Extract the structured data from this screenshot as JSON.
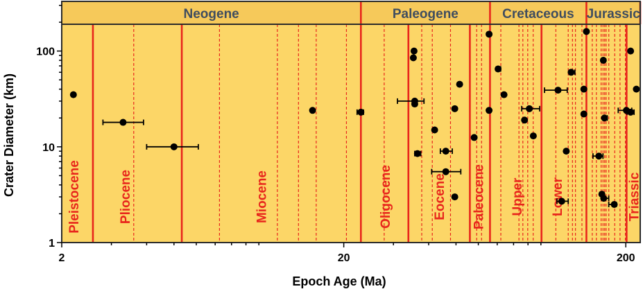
{
  "chart_data": {
    "type": "scatter",
    "xlabel": "Epoch Age (Ma)",
    "ylabel": "Crater Diameter (km)",
    "x_scale": "log",
    "y_scale": "log",
    "xlim": [
      2,
      225
    ],
    "ylim": [
      1,
      330
    ],
    "x_ticks": [
      {
        "value": 2,
        "label": "2"
      },
      {
        "value": 20,
        "label": "20"
      },
      {
        "value": 200,
        "label": "200"
      }
    ],
    "y_ticks": [
      {
        "value": 1,
        "label": "1"
      },
      {
        "value": 10,
        "label": "10"
      },
      {
        "value": 100,
        "label": "100"
      }
    ],
    "colors": {
      "plot_background": "#fcd667",
      "period_band": "#f6c95a",
      "boundary_line": "#e8261c",
      "period_text": "#3f4d5f",
      "epoch_text": "#e8261c",
      "marker": "#000000"
    },
    "periods": [
      {
        "name": "Neogene",
        "start": 2,
        "end": 23.0
      },
      {
        "name": "Paleogene",
        "start": 23.0,
        "end": 66.0
      },
      {
        "name": "Cretaceous",
        "start": 66.0,
        "end": 145.0
      },
      {
        "name": "Jurassic",
        "start": 145.0,
        "end": 225
      }
    ],
    "epochs": [
      {
        "name": "Pleistocene",
        "x": 2.2
      },
      {
        "name": "Pliocene",
        "x": 3.35
      },
      {
        "name": "Miocene",
        "x": 10.2
      },
      {
        "name": "Oligocene",
        "x": 28.0
      },
      {
        "name": "Eocene",
        "x": 43.5
      },
      {
        "name": "Paleocene",
        "x": 60.0
      },
      {
        "name": "Upper",
        "x": 82.0
      },
      {
        "name": "Lower",
        "x": 114.0
      },
      {
        "name": "Triassic",
        "x": 213.0
      }
    ],
    "major_boundaries": [
      2.58,
      5.33,
      23.0,
      33.9,
      56.0,
      66.0,
      100.5,
      145.0,
      201.3
    ],
    "minor_boundaries": [
      3.6,
      7.25,
      11.63,
      13.82,
      15.97,
      20.44,
      27.82,
      37.8,
      41.2,
      47.8,
      59.2,
      61.6,
      72.1,
      83.6,
      86.3,
      89.8,
      93.9,
      113.0,
      125.0,
      129.4,
      132.6,
      139.8,
      152.1,
      157.3,
      163.5,
      166.1,
      168.3,
      170.3,
      174.1,
      182.7,
      190.8,
      199.3
    ],
    "series": [
      {
        "points": [
          {
            "x": 2.2,
            "y": 35
          },
          {
            "x": 3.3,
            "y": 18,
            "xerr": [
              2.8,
              3.9
            ]
          },
          {
            "x": 5.0,
            "y": 10,
            "xerr": [
              4.0,
              6.1
            ]
          },
          {
            "x": 15.5,
            "y": 24
          },
          {
            "x": 23.0,
            "y": 23,
            "xerr": [
              22.3,
              23.5
            ]
          },
          {
            "x": 35.5,
            "y": 100
          },
          {
            "x": 35.3,
            "y": 85
          },
          {
            "x": 35.7,
            "y": 30,
            "xerr": [
              31.0,
              38.5
            ]
          },
          {
            "x": 35.7,
            "y": 28
          },
          {
            "x": 36.5,
            "y": 8.5,
            "xerr": [
              35.7,
              37.5
            ]
          },
          {
            "x": 42.0,
            "y": 15
          },
          {
            "x": 46.0,
            "y": 9,
            "xerr": [
              44.0,
              48.5
            ]
          },
          {
            "x": 46.0,
            "y": 5.5,
            "xerr": [
              41.0,
              52.0
            ]
          },
          {
            "x": 49.5,
            "y": 25
          },
          {
            "x": 49.5,
            "y": 3
          },
          {
            "x": 51.5,
            "y": 45
          },
          {
            "x": 58.0,
            "y": 12.5
          },
          {
            "x": 65.5,
            "y": 150
          },
          {
            "x": 65.5,
            "y": 24
          },
          {
            "x": 70.5,
            "y": 65,
            "xerr": [
              69.5,
              72.0
            ]
          },
          {
            "x": 74.0,
            "y": 35
          },
          {
            "x": 87.5,
            "y": 19
          },
          {
            "x": 91.0,
            "y": 25,
            "xerr": [
              85.5,
              99.0
            ]
          },
          {
            "x": 94.0,
            "y": 13
          },
          {
            "x": 115.0,
            "y": 39,
            "xerr": [
              103.0,
              124.0
            ]
          },
          {
            "x": 118.5,
            "y": 2.7,
            "xerr": [
              114.0,
              125.0
            ]
          },
          {
            "x": 123.0,
            "y": 9
          },
          {
            "x": 128.0,
            "y": 60,
            "xerr": [
              126.0,
              132.0
            ]
          },
          {
            "x": 142.0,
            "y": 40
          },
          {
            "x": 142.0,
            "y": 22
          },
          {
            "x": 145.0,
            "y": 160
          },
          {
            "x": 160.5,
            "y": 8,
            "xerr": [
              153.0,
              166.0
            ]
          },
          {
            "x": 164.5,
            "y": 3.2
          },
          {
            "x": 166.5,
            "y": 80
          },
          {
            "x": 168.0,
            "y": 20,
            "xerr": [
              166.0,
              172.0
            ]
          },
          {
            "x": 167.0,
            "y": 2.9,
            "xerr": [
              166.0,
              174.0
            ]
          },
          {
            "x": 182.0,
            "y": 2.5,
            "xerr": [
              174.0,
              185.0
            ]
          },
          {
            "x": 201.0,
            "y": 24,
            "xerr": [
              188.0,
              210.0
            ]
          },
          {
            "x": 208.0,
            "y": 23,
            "xerr": [
              202.0,
              214.0
            ]
          },
          {
            "x": 208.0,
            "y": 100
          },
          {
            "x": 218.0,
            "y": 40
          }
        ]
      }
    ]
  }
}
